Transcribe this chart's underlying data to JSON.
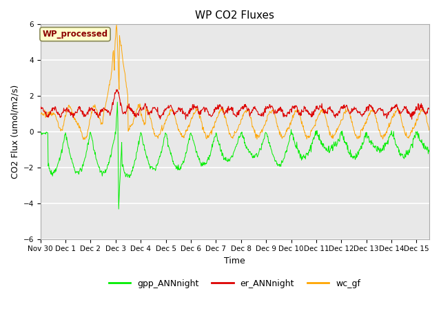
{
  "title": "WP CO2 Fluxes",
  "xlabel": "Time",
  "ylabel": "CO2 Flux (umol/m2/s)",
  "ylim": [
    -6,
    6
  ],
  "yticks": [
    -6,
    -4,
    -2,
    0,
    2,
    4,
    6
  ],
  "annotation_text": "WP_processed",
  "annotation_color": "#8B0000",
  "annotation_bg": "#FFFFCC",
  "bg_color": "#E8E8E8",
  "line_colors": {
    "gpp": "#00EE00",
    "er": "#DD0000",
    "wc": "#FFA500"
  },
  "legend_labels": [
    "gpp_ANNnight",
    "er_ANNnight",
    "wc_gf"
  ],
  "total_days": 15.5,
  "n_points": 900
}
